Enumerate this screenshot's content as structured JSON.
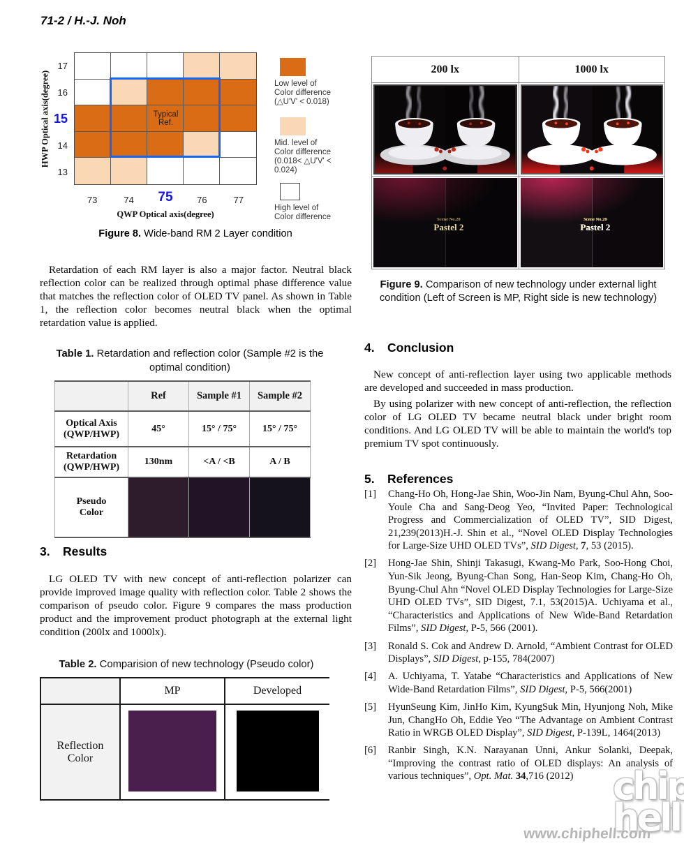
{
  "page": {
    "header": "71-2 / H.-J. Noh"
  },
  "figure8": {
    "y_axis_label": "HWP Optical axis(degree)",
    "x_axis_label": "QWP Optical axis(degree)",
    "y_ticks": [
      "17",
      "16",
      "15",
      "14",
      "13"
    ],
    "x_ticks": [
      "73",
      "74",
      "75",
      "76",
      "77"
    ],
    "annotation": "Typical\nRef.",
    "caption_bold": "Figure 8.",
    "caption_rest": " Wide-band RM 2 Layer condition",
    "colors": {
      "low": "#D96C15",
      "mid": "#FAD7B5",
      "high": "#FFFFFF",
      "highlight_box": "#1565F0"
    },
    "legend": {
      "low": [
        "Low level of",
        "Color difference",
        "(△U'V' < 0.018)"
      ],
      "mid": [
        "Mid. level of",
        "Color difference",
        "(0.018< △U'V' < 0.024)"
      ],
      "high": [
        "High level of",
        "Color difference"
      ]
    }
  },
  "chart_data": {
    "type": "heatmap",
    "title": "Figure 8. Wide-band RM 2 Layer condition",
    "xlabel": "QWP Optical axis(degree)",
    "ylabel": "HWP Optical axis(degree)",
    "x": [
      73,
      74,
      75,
      76,
      77
    ],
    "y": [
      17,
      16,
      15,
      14,
      13
    ],
    "legend_levels": [
      "low = ΔU'V' < 0.018",
      "mid = 0.018 < ΔU'V' < 0.024",
      "high = high level of color difference"
    ],
    "grid": [
      [
        "high",
        "high",
        "high",
        "mid",
        "mid"
      ],
      [
        "high",
        "mid",
        "low",
        "low",
        "low"
      ],
      [
        "low",
        "low",
        "low",
        "low",
        "low"
      ],
      [
        "low",
        "low",
        "low",
        "mid",
        "high"
      ],
      [
        "mid",
        "mid",
        "high",
        "high",
        "high"
      ]
    ],
    "annotation": {
      "text": "Typical Ref.",
      "x": 75,
      "y": 15
    },
    "highlight_region": {
      "x": [
        74,
        76
      ],
      "y": [
        14,
        16
      ]
    }
  },
  "intro_paragraph": "Retardation of each RM layer is also a major factor. Neutral black reflection color can be realized through optimal phase difference value that matches the reflection color of OLED TV panel. As shown in Table 1, the reflection color becomes neutral black when the optimal retardation value is applied.",
  "table1": {
    "caption_bold": "Table 1.",
    "caption_rest": " Retardation and reflection color (Sample #2 is the optimal condition)",
    "col_headers": [
      "",
      "Ref",
      "Sample #1",
      "Sample #2"
    ],
    "rows": [
      {
        "label_line1": "Optical Axis",
        "label_line2": "(QWP/HWP)",
        "cells": [
          "45°",
          "15° / 75°",
          "15° / 75°"
        ]
      },
      {
        "label_line1": "Retardation",
        "label_line2": "(QWP/HWP)",
        "cells": [
          "130nm",
          "<A / <B",
          "A / B"
        ]
      },
      {
        "label_line1": "Pseudo",
        "label_line2": "Color",
        "colors": [
          "#2E1B2C",
          "#221426",
          "#15121C"
        ]
      }
    ]
  },
  "results": {
    "heading_num": "3.",
    "heading": "Results",
    "paragraph": "LG OLED TV with new concept of anti-reflection polarizer can provide improved image quality with reflection color. Table 2 shows the comparison of pseudo color. Figure 9 compares the mass production product and the improvement product photograph at the external light condition (200lx and 1000lx)."
  },
  "table2": {
    "caption_bold": "Table 2.",
    "caption_rest": " Comparision of new technology (Pseudo color)",
    "col_headers": [
      "MP",
      "Developed"
    ],
    "row_label_line1": "Reflection",
    "row_label_line2": "Color",
    "swatches": [
      "#4A1F4E",
      "#000000"
    ]
  },
  "figure9": {
    "col_headers": [
      "200 lx",
      "1000 lx"
    ],
    "photo_label_line1": "Scene No.20",
    "photo_label_line2": "Pastel 2",
    "caption_bold": "Figure 9.",
    "caption_rest": " Comparison of new technology under external light condition (Left of Screen is MP, Right side is new technology)"
  },
  "conclusion": {
    "heading_num": "4.",
    "heading": "Conclusion",
    "para1": "New concept of anti-reflection layer using two applicable methods are developed and succeeded in mass production.",
    "para2": "By using polarizer with new concept of anti-reflection, the reflection color of LG OLED TV became neutral black under bright room conditions. And LG OLED TV will be able to maintain the world's top premium TV spot continuously."
  },
  "references": {
    "heading_num": "5.",
    "heading": "References",
    "items": [
      {
        "num": "[1]",
        "segments": [
          {
            "t": "Chang-Ho Oh, Hong-Jae Shin, Woo-Jin Nam, Byung-Chul Ahn, Soo-Youle Cha and Sang-Deog Yeo, “Invited Paper: Technological Progress and Commercialization of OLED TV”, SID Digest, 21,239(2013)H.-J. Shin et al., “Novel OLED Display Technologies for Large-Size UHD OLED TVs”, "
          },
          {
            "t": "SID Digest",
            "i": true
          },
          {
            "t": ", "
          },
          {
            "t": "7",
            "b": true
          },
          {
            "t": ", 53 (2015)."
          }
        ]
      },
      {
        "num": "[2]",
        "segments": [
          {
            "t": "Hong-Jae Shin, Shinji Takasugi, Kwang-Mo Park, Soo-Hong Choi, Yun-Sik Jeong, Byung-Chan Song, Han-Seop Kim, Chang-Ho Oh, Byung-Chul Ahn “Novel OLED Display Technologies for Large-Size UHD OLED TVs”, SID Digest, 7.1, 53(2015)A. Uchiyama et al., “Characteristics and Applications of New Wide-Band Retardation Films”, "
          },
          {
            "t": "SID Digest",
            "i": true
          },
          {
            "t": ", P-5, 566 (2001)."
          }
        ]
      },
      {
        "num": "[3]",
        "segments": [
          {
            "t": "Ronald S. Cok and Andrew D. Arnold, “Ambient Contrast for OLED Displays”, "
          },
          {
            "t": "SID Digest",
            "i": true
          },
          {
            "t": ", p-155, 784(2007)"
          }
        ]
      },
      {
        "num": "[4]",
        "segments": [
          {
            "t": "A. Uchiyama, T. Yatabe “Characteristics and Applications of New Wide-Band Retardation Films”, "
          },
          {
            "t": "SID Digest",
            "i": true
          },
          {
            "t": ", P-5, 566(2001)"
          }
        ]
      },
      {
        "num": "[5]",
        "segments": [
          {
            "t": "HyunSeung Kim, JinHo Kim, KyungSuk Min, Hyunjong Noh, Mike Jun, ChangHo Oh, Eddie Yeo “The Advantage on Ambient Contrast Ratio in WRGB OLED Display”, "
          },
          {
            "t": "SID Digest",
            "i": true
          },
          {
            "t": ", P-139L, 1464(2013)"
          }
        ]
      },
      {
        "num": "[6]",
        "segments": [
          {
            "t": "Ranbir Singh, K.N. Narayanan Unni, Ankur Solanki, Deepak, “Improving the contrast ratio of OLED displays: An analysis of various techniques”, "
          },
          {
            "t": "Opt. Mat.",
            "i": true
          },
          {
            "t": " "
          },
          {
            "t": "34",
            "b": true
          },
          {
            "t": ",716 (2012)"
          }
        ]
      }
    ]
  },
  "watermark": {
    "url": "www.chiphell.com",
    "logo_line1": "chip",
    "logo_line2": "hell"
  }
}
